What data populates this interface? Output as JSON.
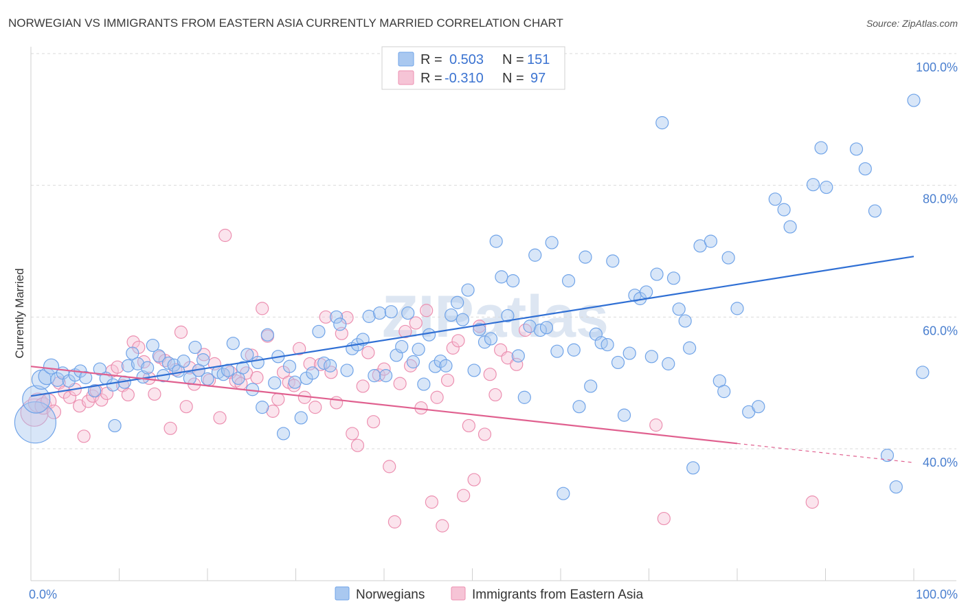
{
  "title": "NORWEGIAN VS IMMIGRANTS FROM EASTERN ASIA CURRENTLY MARRIED CORRELATION CHART",
  "source": "Source: ZipAtlas.com",
  "watermark": "ZIPatlas",
  "colors": {
    "blue": "#6fa3e8",
    "blue_fill": "#a9c8f0",
    "blue_line": "#2f6fd4",
    "pink": "#ec8fb0",
    "pink_fill": "#f6c4d6",
    "pink_line": "#e0608f",
    "grid": "#d9d9d9",
    "tick_text": "#4a7fcf"
  },
  "legend": {
    "rows": [
      {
        "r_label": "R =",
        "r_value": "0.503",
        "n_label": "N =",
        "n_value": "151"
      },
      {
        "r_label": "R =",
        "r_value": "-0.310",
        "n_label": "N =",
        "n_value": "97"
      }
    ]
  },
  "bottom_legend": [
    "Norwegians",
    "Immigrants from Eastern Asia"
  ],
  "chart_data": {
    "type": "scatter",
    "xlabel": "",
    "ylabel": "Currently Married",
    "xlim": [
      0,
      100
    ],
    "ylim": [
      22,
      104
    ],
    "x_tick_labels": [
      "0.0%",
      "100.0%"
    ],
    "y_ticks": [
      40,
      60,
      80,
      100
    ],
    "y_tick_labels": [
      "40.0%",
      "60.0%",
      "80.0%",
      "100.0%"
    ],
    "grid": true,
    "legend_position": "top-center",
    "series": [
      {
        "name": "Norwegians",
        "r": 0.503,
        "n": 151,
        "trend": {
          "x0": 0,
          "y0": 48.0,
          "x1": 100,
          "y1": 69.2
        },
        "points": [
          [
            0.5,
            44,
            30
          ],
          [
            0.6,
            47.5,
            20
          ],
          [
            1.2,
            50.5,
            14
          ],
          [
            1.8,
            51,
            12
          ],
          [
            2.3,
            52.5,
            11
          ],
          [
            3.0,
            50.5,
            10
          ],
          [
            3.6,
            51.5,
            9
          ],
          [
            4.3,
            50.3,
            9
          ],
          [
            5.0,
            51.2,
            9
          ],
          [
            5.6,
            51.8,
            9
          ],
          [
            6.2,
            50.8,
            9
          ],
          [
            7.2,
            48.8,
            9
          ],
          [
            7.8,
            52.1,
            9
          ],
          [
            8.5,
            50.7,
            9
          ],
          [
            9.3,
            49.7,
            9
          ],
          [
            9.5,
            43.5,
            9
          ],
          [
            10.6,
            50.1,
            9
          ],
          [
            11.0,
            52.6,
            9
          ],
          [
            11.5,
            54.5,
            9
          ],
          [
            12.1,
            52.9,
            9
          ],
          [
            12.7,
            50.9,
            9
          ],
          [
            13.2,
            52.3,
            9
          ],
          [
            13.8,
            55.7,
            9
          ],
          [
            14.5,
            54.1,
            9
          ],
          [
            15.0,
            51.1,
            9
          ],
          [
            15.6,
            53.0,
            9
          ],
          [
            16.2,
            52.7,
            9
          ],
          [
            16.7,
            51.8,
            9
          ],
          [
            17.3,
            53.3,
            9
          ],
          [
            18.0,
            50.7,
            9
          ],
          [
            18.6,
            55.4,
            9
          ],
          [
            19.0,
            51.9,
            9
          ],
          [
            19.5,
            53.5,
            9
          ],
          [
            20.0,
            50.6,
            9
          ],
          [
            21.2,
            51.6,
            9
          ],
          [
            21.8,
            51.3,
            9
          ],
          [
            22.3,
            51.9,
            9
          ],
          [
            22.9,
            56.0,
            9
          ],
          [
            23.5,
            50.7,
            9
          ],
          [
            24.0,
            52.3,
            9
          ],
          [
            24.5,
            54.3,
            9
          ],
          [
            25.1,
            49.0,
            9
          ],
          [
            25.7,
            53.1,
            9
          ],
          [
            26.2,
            46.3,
            9
          ],
          [
            26.8,
            57.3,
            9
          ],
          [
            27.6,
            50.0,
            9
          ],
          [
            28.0,
            54.0,
            9
          ],
          [
            28.6,
            42.3,
            9
          ],
          [
            29.3,
            52.5,
            9
          ],
          [
            29.9,
            50.1,
            9
          ],
          [
            30.6,
            44.7,
            9
          ],
          [
            31.2,
            50.7,
            9
          ],
          [
            31.9,
            51.5,
            9
          ],
          [
            32.6,
            57.8,
            9
          ],
          [
            33.2,
            53.0,
            9
          ],
          [
            33.9,
            52.6,
            9
          ],
          [
            34.6,
            60.0,
            9
          ],
          [
            35.0,
            58.9,
            9
          ],
          [
            35.8,
            51.9,
            9
          ],
          [
            36.4,
            55.2,
            9
          ],
          [
            37.0,
            55.8,
            9
          ],
          [
            37.6,
            56.6,
            9
          ],
          [
            38.3,
            60.1,
            9
          ],
          [
            38.9,
            51.1,
            9
          ],
          [
            39.5,
            60.6,
            9
          ],
          [
            40.2,
            51.1,
            9
          ],
          [
            40.8,
            60.8,
            9
          ],
          [
            41.4,
            54.2,
            9
          ],
          [
            42.0,
            55.5,
            9
          ],
          [
            42.7,
            60.6,
            9
          ],
          [
            43.3,
            53.2,
            9
          ],
          [
            43.9,
            55.1,
            9
          ],
          [
            44.5,
            49.8,
            9
          ],
          [
            45.1,
            57.3,
            9
          ],
          [
            45.8,
            52.5,
            9
          ],
          [
            46.4,
            53.3,
            9
          ],
          [
            47.0,
            52.6,
            9
          ],
          [
            47.6,
            60.3,
            9
          ],
          [
            48.3,
            62.2,
            9
          ],
          [
            48.9,
            59.6,
            9
          ],
          [
            49.5,
            64.1,
            9
          ],
          [
            50.2,
            51.9,
            9
          ],
          [
            50.8,
            58.1,
            9
          ],
          [
            51.4,
            56.2,
            9
          ],
          [
            52.1,
            56.7,
            9
          ],
          [
            52.7,
            71.5,
            9
          ],
          [
            53.3,
            66.1,
            9
          ],
          [
            54.0,
            60.2,
            9
          ],
          [
            54.6,
            65.5,
            9
          ],
          [
            55.2,
            54.1,
            9
          ],
          [
            55.9,
            47.8,
            9
          ],
          [
            56.5,
            58.6,
            9
          ],
          [
            57.1,
            69.4,
            9
          ],
          [
            57.7,
            58.0,
            9
          ],
          [
            58.4,
            58.4,
            9
          ],
          [
            59.0,
            71.3,
            9
          ],
          [
            59.6,
            54.8,
            9
          ],
          [
            60.3,
            33.2,
            9
          ],
          [
            60.9,
            65.5,
            9
          ],
          [
            61.5,
            55.0,
            9
          ],
          [
            62.1,
            46.4,
            9
          ],
          [
            62.8,
            69.1,
            9
          ],
          [
            63.4,
            49.5,
            9
          ],
          [
            64.0,
            57.4,
            9
          ],
          [
            64.6,
            56.1,
            9
          ],
          [
            65.3,
            55.8,
            9
          ],
          [
            65.9,
            68.5,
            9
          ],
          [
            66.5,
            53.1,
            9
          ],
          [
            67.2,
            45.1,
            9
          ],
          [
            67.8,
            54.5,
            9
          ],
          [
            68.4,
            63.3,
            9
          ],
          [
            69.0,
            62.8,
            9
          ],
          [
            69.7,
            63.8,
            9
          ],
          [
            70.3,
            54.0,
            9
          ],
          [
            70.9,
            66.5,
            9
          ],
          [
            71.5,
            89.5,
            9
          ],
          [
            72.2,
            52.9,
            9
          ],
          [
            72.8,
            65.9,
            9
          ],
          [
            73.4,
            61.2,
            9
          ],
          [
            74.1,
            59.4,
            9
          ],
          [
            74.6,
            55.3,
            9
          ],
          [
            75.0,
            37.1,
            9
          ],
          [
            75.8,
            70.8,
            9
          ],
          [
            77.0,
            71.5,
            9
          ],
          [
            78.0,
            50.3,
            9
          ],
          [
            78.5,
            48.7,
            9
          ],
          [
            79.0,
            69.0,
            9
          ],
          [
            80.0,
            61.3,
            9
          ],
          [
            81.3,
            45.6,
            9
          ],
          [
            82.4,
            46.4,
            9
          ],
          [
            84.3,
            77.9,
            9
          ],
          [
            85.3,
            76.3,
            9
          ],
          [
            86.0,
            73.7,
            9
          ],
          [
            88.6,
            80.1,
            9
          ],
          [
            89.5,
            85.7,
            9
          ],
          [
            90.1,
            79.7,
            9
          ],
          [
            93.5,
            85.5,
            9
          ],
          [
            94.5,
            82.5,
            9
          ],
          [
            95.6,
            76.1,
            9
          ],
          [
            97.0,
            39.0,
            9
          ],
          [
            98.0,
            34.2,
            9
          ],
          [
            100.0,
            92.9,
            9
          ],
          [
            101.0,
            51.6,
            9
          ]
        ]
      },
      {
        "name": "Immigrants from Eastern Asia",
        "r": -0.31,
        "n": 97,
        "trend": {
          "x0": 0,
          "y0": 52.5,
          "x1": 80,
          "y1": 40.8,
          "dash_to_x": 100,
          "dash_to_y": 37.9
        },
        "points": [
          [
            0.4,
            45.5,
            20
          ],
          [
            0.8,
            47,
            14
          ],
          [
            1.4,
            46.5,
            12
          ],
          [
            2.0,
            47.2,
            11
          ],
          [
            2.6,
            45.6,
            10
          ],
          [
            3.2,
            50.0,
            9
          ],
          [
            3.8,
            48.6,
            9
          ],
          [
            4.4,
            47.8,
            9
          ],
          [
            5.0,
            49.0,
            9
          ],
          [
            5.5,
            46.5,
            9
          ],
          [
            6.0,
            41.9,
            9
          ],
          [
            6.5,
            47.2,
            9
          ],
          [
            7.0,
            48.0,
            9
          ],
          [
            7.4,
            48.8,
            9
          ],
          [
            8.0,
            47.4,
            9
          ],
          [
            8.6,
            48.4,
            9
          ],
          [
            9.2,
            51.8,
            9
          ],
          [
            9.8,
            52.4,
            9
          ],
          [
            10.4,
            49.6,
            9
          ],
          [
            11.0,
            48.2,
            9
          ],
          [
            11.6,
            56.2,
            9
          ],
          [
            12.2,
            55.4,
            9
          ],
          [
            12.8,
            53.2,
            9
          ],
          [
            13.4,
            50.7,
            9
          ],
          [
            14.0,
            48.3,
            9
          ],
          [
            14.6,
            53.9,
            9
          ],
          [
            15.2,
            53.4,
            9
          ],
          [
            15.8,
            43.1,
            9
          ],
          [
            16.4,
            52.0,
            9
          ],
          [
            17.0,
            57.7,
            9
          ],
          [
            17.6,
            46.4,
            9
          ],
          [
            18.0,
            52.3,
            9
          ],
          [
            18.5,
            49.8,
            9
          ],
          [
            19.0,
            51.9,
            9
          ],
          [
            19.6,
            54.3,
            9
          ],
          [
            20.2,
            50.4,
            9
          ],
          [
            20.8,
            52.9,
            9
          ],
          [
            21.4,
            44.7,
            9
          ],
          [
            22.0,
            72.4,
            9
          ],
          [
            22.6,
            51.6,
            9
          ],
          [
            23.2,
            50.3,
            9
          ],
          [
            23.8,
            49.9,
            9
          ],
          [
            24.4,
            51.5,
            9
          ],
          [
            25.0,
            54.2,
            9
          ],
          [
            25.6,
            50.8,
            9
          ],
          [
            26.2,
            61.3,
            9
          ],
          [
            26.8,
            57.1,
            9
          ],
          [
            27.4,
            45.7,
            9
          ],
          [
            28.0,
            47.5,
            9
          ],
          [
            28.6,
            51.6,
            9
          ],
          [
            29.2,
            50.1,
            9
          ],
          [
            29.8,
            49.6,
            9
          ],
          [
            30.4,
            55.2,
            9
          ],
          [
            31.0,
            47.8,
            9
          ],
          [
            31.6,
            52.9,
            9
          ],
          [
            32.2,
            46.3,
            9
          ],
          [
            32.8,
            52.8,
            9
          ],
          [
            33.4,
            60.0,
            9
          ],
          [
            34.0,
            51.6,
            9
          ],
          [
            34.6,
            47.0,
            9
          ],
          [
            35.2,
            57.5,
            9
          ],
          [
            35.8,
            59.9,
            9
          ],
          [
            36.4,
            42.3,
            9
          ],
          [
            37.0,
            40.5,
            9
          ],
          [
            37.6,
            49.5,
            9
          ],
          [
            38.2,
            54.6,
            9
          ],
          [
            38.8,
            44.1,
            9
          ],
          [
            39.4,
            51.2,
            9
          ],
          [
            40.0,
            52.1,
            9
          ],
          [
            40.6,
            37.3,
            9
          ],
          [
            41.2,
            28.9,
            9
          ],
          [
            41.8,
            49.9,
            9
          ],
          [
            42.4,
            57.8,
            9
          ],
          [
            43.0,
            52.6,
            9
          ],
          [
            43.6,
            59.1,
            9
          ],
          [
            44.2,
            46.2,
            9
          ],
          [
            44.8,
            61.0,
            9
          ],
          [
            45.4,
            31.9,
            9
          ],
          [
            46.0,
            47.8,
            9
          ],
          [
            46.6,
            28.3,
            9
          ],
          [
            47.2,
            50.4,
            9
          ],
          [
            47.8,
            55.3,
            9
          ],
          [
            48.4,
            56.4,
            9
          ],
          [
            49.0,
            32.9,
            9
          ],
          [
            49.6,
            43.5,
            9
          ],
          [
            50.2,
            35.3,
            9
          ],
          [
            50.8,
            58.6,
            9
          ],
          [
            51.4,
            42.2,
            9
          ],
          [
            52.0,
            51.3,
            9
          ],
          [
            52.6,
            48.2,
            9
          ],
          [
            53.2,
            55.0,
            9
          ],
          [
            54.0,
            53.8,
            9
          ],
          [
            55.0,
            52.8,
            9
          ],
          [
            56.0,
            58.0,
            9
          ],
          [
            70.8,
            43.6,
            9
          ],
          [
            88.5,
            31.9,
            9
          ],
          [
            71.7,
            29.4,
            9
          ]
        ]
      }
    ]
  }
}
